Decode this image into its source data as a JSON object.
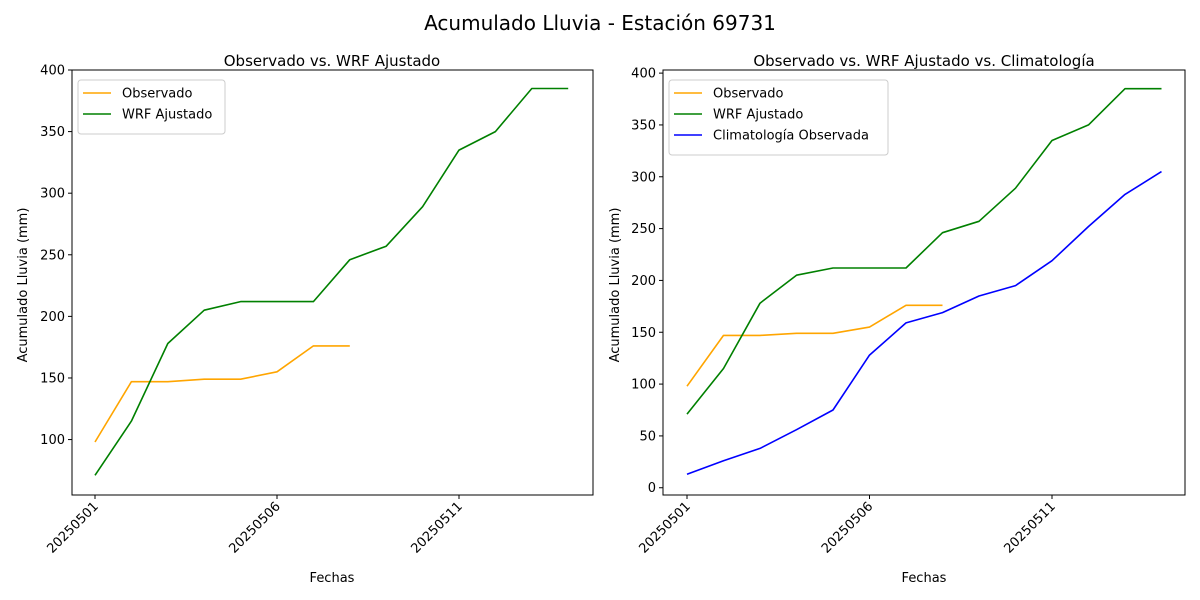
{
  "figure": {
    "title": "Acumulado Lluvia - Estación 69731"
  },
  "colors": {
    "observado": "#ffa500",
    "wrf": "#008000",
    "climatologia": "#0000ff"
  },
  "chart_data": [
    {
      "type": "line",
      "title": "Observado vs. WRF Ajustado",
      "xlabel": "Fechas",
      "ylabel": "Acumulado Lluvia (mm)",
      "x": [
        "20250501",
        "20250502",
        "20250503",
        "20250504",
        "20250505",
        "20250506",
        "20250507",
        "20250508",
        "20250509",
        "20250510",
        "20250511",
        "20250512",
        "20250513",
        "20250514"
      ],
      "xticks": [
        "20250501",
        "20250506",
        "20250511"
      ],
      "ylim": [
        55,
        400
      ],
      "yticks": [
        100,
        150,
        200,
        250,
        300,
        350,
        400
      ],
      "legend": "top-left",
      "series": [
        {
          "name": "Observado",
          "color": "#ffa500",
          "values": [
            98,
            147,
            147,
            149,
            149,
            155,
            176,
            176,
            null,
            null,
            null,
            null,
            null,
            null
          ]
        },
        {
          "name": "WRF Ajustado",
          "color": "#008000",
          "values": [
            71,
            115,
            178,
            205,
            212,
            212,
            212,
            246,
            257,
            289,
            335,
            350,
            385,
            385
          ]
        }
      ]
    },
    {
      "type": "line",
      "title": "Observado vs. WRF Ajustado vs. Climatología",
      "xlabel": "Fechas",
      "ylabel": "Acumulado Lluvia (mm)",
      "x": [
        "20250501",
        "20250502",
        "20250503",
        "20250504",
        "20250505",
        "20250506",
        "20250507",
        "20250508",
        "20250509",
        "20250510",
        "20250511",
        "20250512",
        "20250513",
        "20250514"
      ],
      "xticks": [
        "20250501",
        "20250506",
        "20250511"
      ],
      "ylim": [
        -7,
        403
      ],
      "yticks": [
        0,
        50,
        100,
        150,
        200,
        250,
        300,
        350,
        400
      ],
      "legend": "top-left",
      "series": [
        {
          "name": "Observado",
          "color": "#ffa500",
          "values": [
            98,
            147,
            147,
            149,
            149,
            155,
            176,
            176,
            null,
            null,
            null,
            null,
            null,
            null
          ]
        },
        {
          "name": "WRF Ajustado",
          "color": "#008000",
          "values": [
            71,
            115,
            178,
            205,
            212,
            212,
            212,
            246,
            257,
            289,
            335,
            350,
            385,
            385
          ]
        },
        {
          "name": "Climatología Observada",
          "color": "#0000ff",
          "values": [
            13,
            26,
            38,
            56,
            75,
            128,
            159,
            169,
            185,
            195,
            219,
            252,
            283,
            305
          ]
        }
      ]
    }
  ]
}
